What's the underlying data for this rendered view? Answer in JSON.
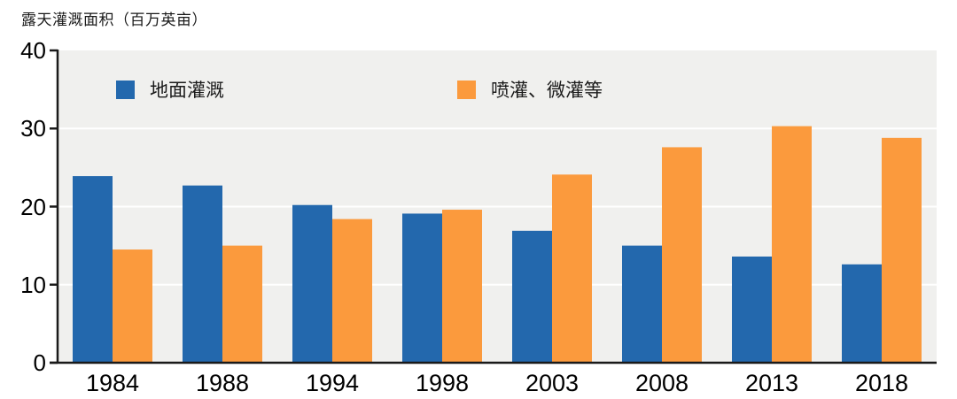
{
  "title": "露天灌溉面积（百万英亩）",
  "colors": {
    "series_blue": "#2368ad",
    "series_orange": "#fb9a3d",
    "plot_background": "#f0f0ee",
    "gridline": "#ffffff",
    "axis": "#1a1a1a",
    "text": "#000000"
  },
  "chart_data": {
    "type": "bar",
    "title": "露天灌溉面积（百万英亩）",
    "categories": [
      "1984",
      "1988",
      "1994",
      "1998",
      "2003",
      "2008",
      "2013",
      "2018"
    ],
    "series": [
      {
        "name": "地面灌溉",
        "color": "#2368ad",
        "values": [
          23.9,
          22.7,
          20.2,
          19.1,
          16.9,
          15.0,
          13.6,
          12.6
        ]
      },
      {
        "name": "喷灌、微灌等",
        "color": "#fb9a3d",
        "values": [
          14.5,
          15.0,
          18.4,
          19.6,
          24.1,
          27.6,
          30.3,
          28.8
        ]
      }
    ],
    "xlabel": "",
    "ylabel": "露天灌溉面积（百万英亩）",
    "ylim": [
      0,
      40
    ],
    "yticks": [
      0,
      10,
      20,
      30,
      40
    ],
    "grid": true,
    "legend_position": "top-inside",
    "plot_bg": "#f0f0ee"
  }
}
